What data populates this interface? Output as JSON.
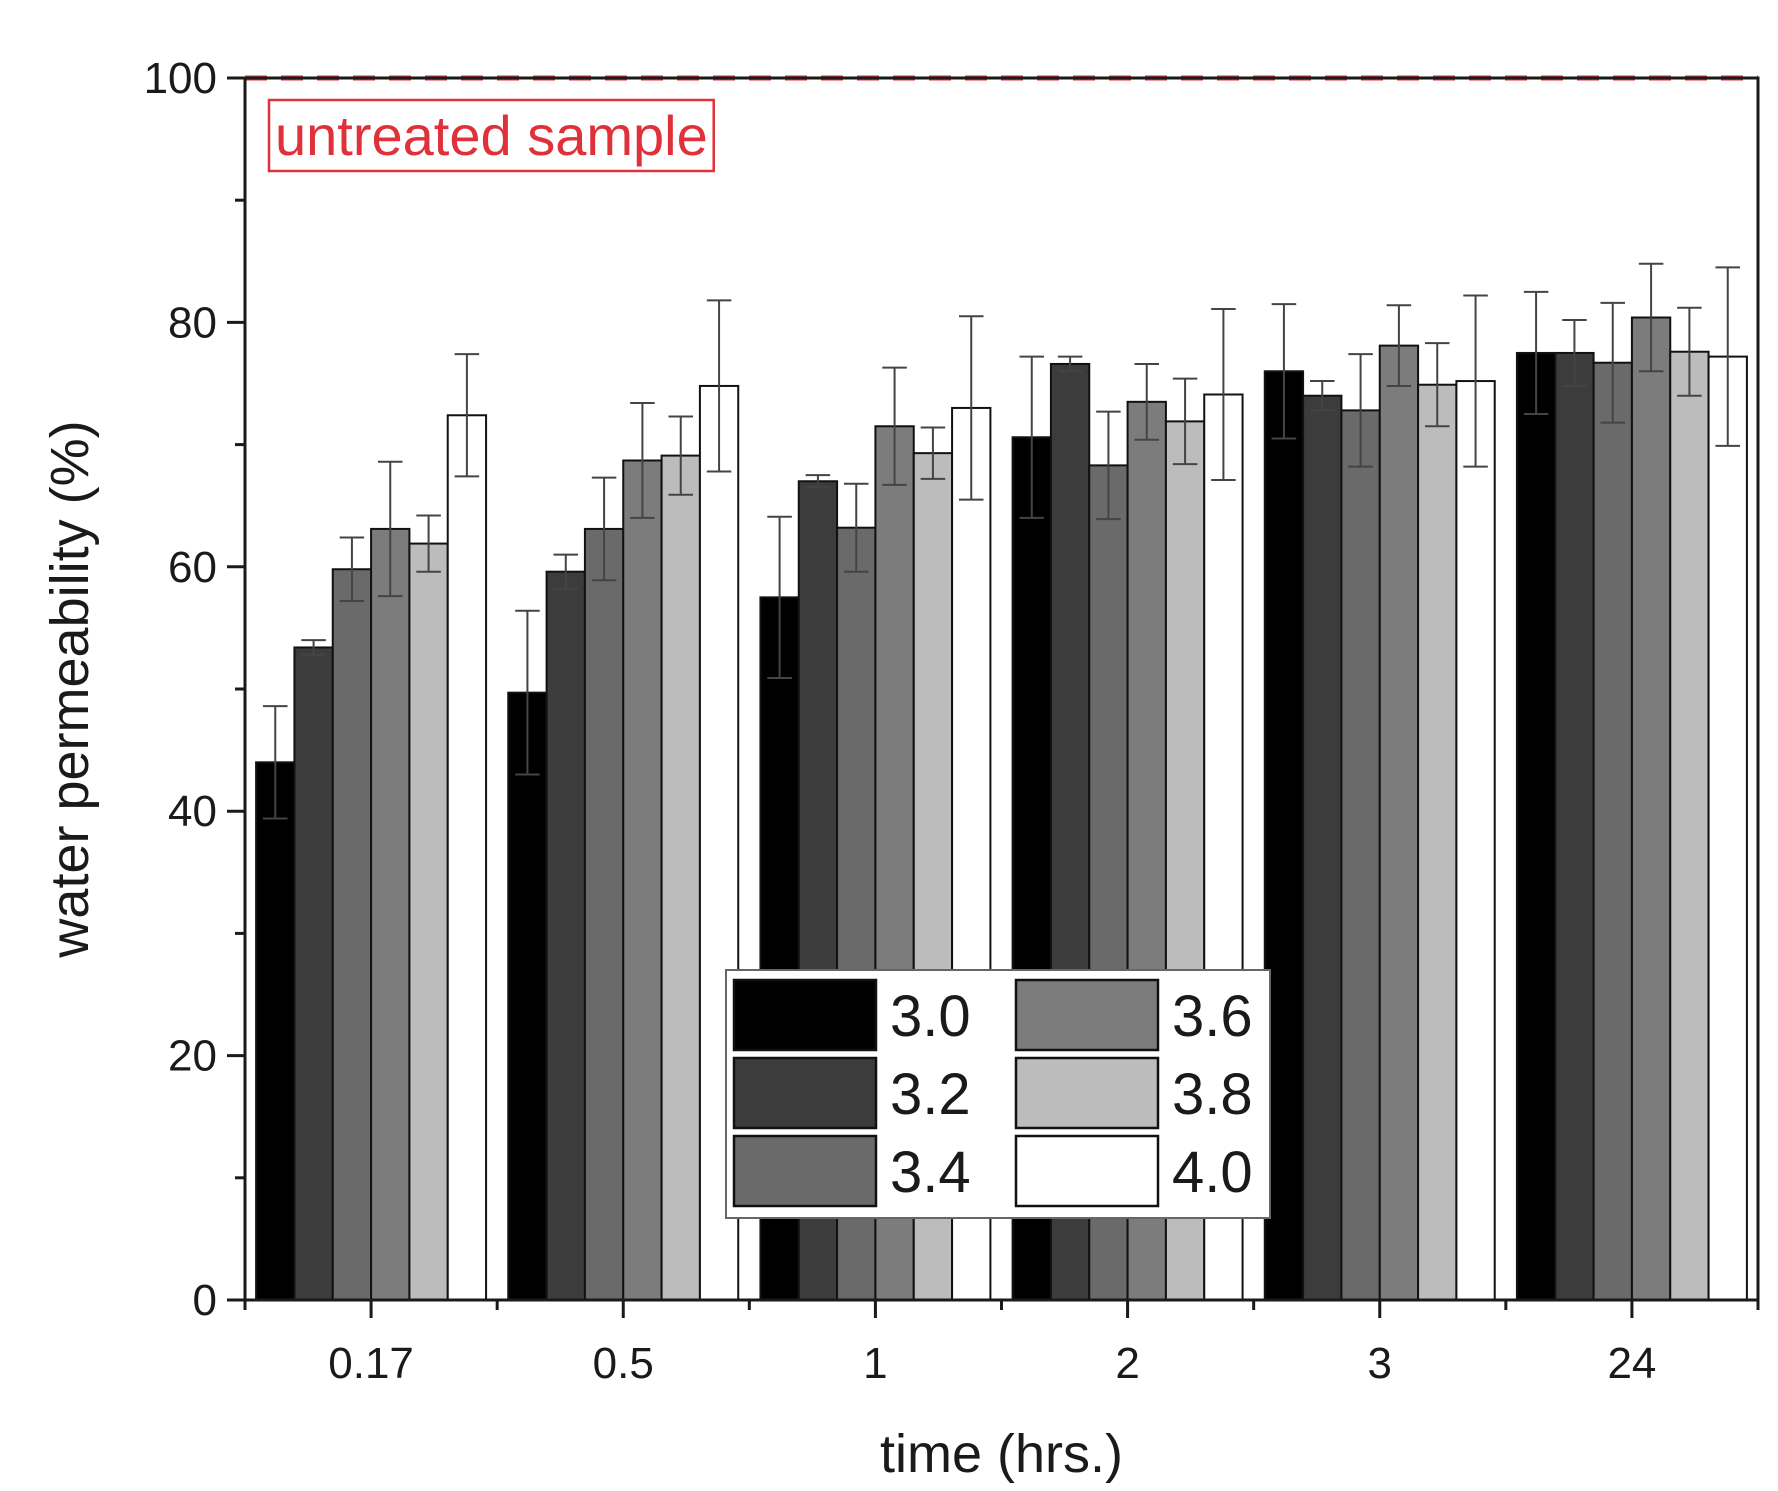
{
  "chart_data": {
    "type": "bar",
    "title": "",
    "xlabel": "time (hrs.)",
    "ylabel": "water permeability (%)",
    "ylim": [
      0,
      100
    ],
    "yticks": [
      "0",
      "20",
      "40",
      "60",
      "80",
      "100"
    ],
    "categories": [
      "0.17",
      "0.5",
      "1",
      "2",
      "3",
      "24"
    ],
    "series": [
      {
        "name": "3.0",
        "color": "#000000",
        "values": [
          44.0,
          49.7,
          57.5,
          70.6,
          76.0,
          77.5
        ],
        "errors": [
          4.6,
          6.7,
          6.6,
          6.6,
          5.5,
          5.0
        ]
      },
      {
        "name": "3.2",
        "color": "#3c3c3c",
        "values": [
          53.4,
          59.6,
          67.0,
          76.6,
          74.0,
          77.5
        ],
        "errors": [
          0.6,
          1.4,
          0.5,
          0.6,
          1.2,
          2.7
        ]
      },
      {
        "name": "3.4",
        "color": "#6a6a6a",
        "values": [
          59.8,
          63.1,
          63.2,
          68.3,
          72.8,
          76.7
        ],
        "errors": [
          2.6,
          4.2,
          3.6,
          4.4,
          4.6,
          4.9
        ]
      },
      {
        "name": "3.6",
        "color": "#7c7c7c",
        "values": [
          63.1,
          68.7,
          71.5,
          73.5,
          78.1,
          80.4
        ],
        "errors": [
          5.5,
          4.7,
          4.8,
          3.1,
          3.3,
          4.4
        ]
      },
      {
        "name": "3.8",
        "color": "#bcbcbc",
        "values": [
          61.9,
          69.1,
          69.3,
          71.9,
          74.9,
          77.6
        ],
        "errors": [
          2.3,
          3.2,
          2.1,
          3.5,
          3.4,
          3.6
        ]
      },
      {
        "name": "4.0",
        "color": "#ffffff",
        "values": [
          72.4,
          74.8,
          73.0,
          74.1,
          75.2,
          77.2
        ],
        "errors": [
          5.0,
          7.0,
          7.5,
          7.0,
          7.0,
          7.3
        ]
      }
    ],
    "reference_line": {
      "value": 100,
      "label": "untreated sample",
      "color": "#e0303a",
      "style": "dashed"
    },
    "legend": {
      "position": "bottom-center",
      "columns": 2
    }
  }
}
